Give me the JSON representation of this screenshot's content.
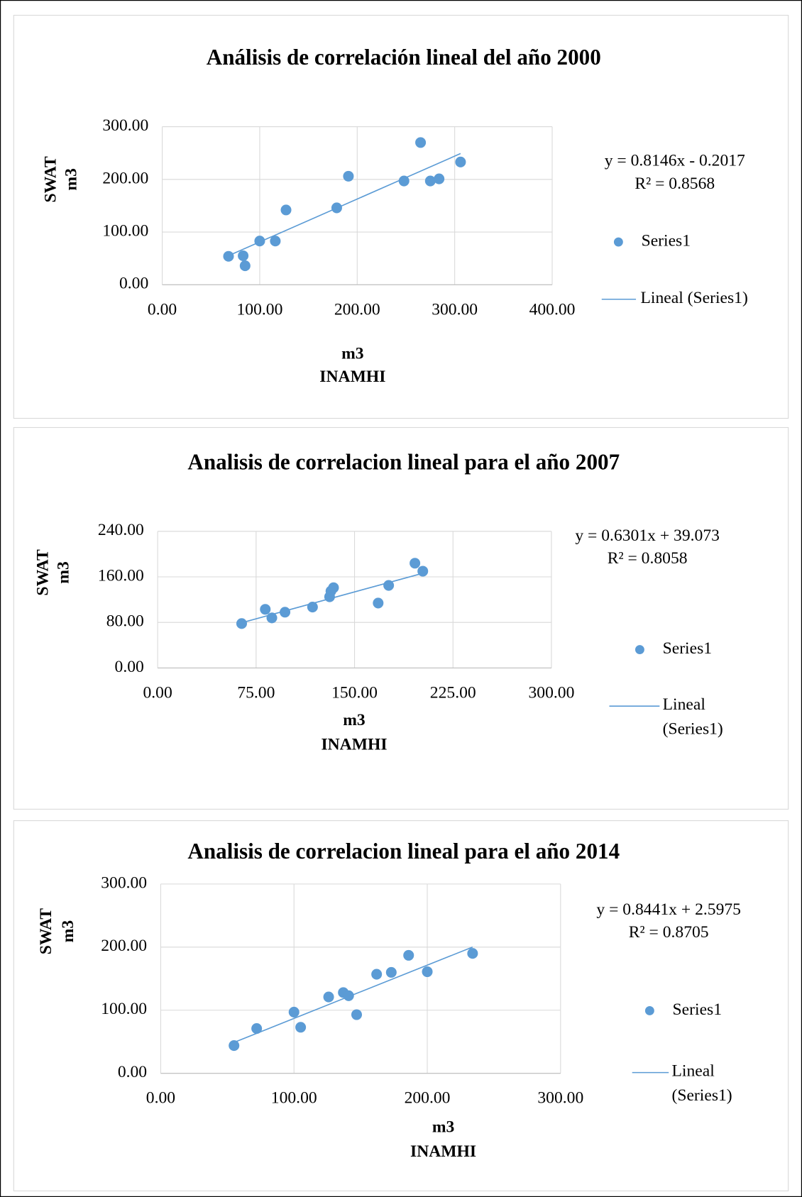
{
  "chart_data": [
    {
      "type": "scatter",
      "title": "Análisis de correlación lineal del año 2000",
      "xlabel": [
        "m3",
        "INAMHI"
      ],
      "ylabel": [
        "SWAT",
        "m3"
      ],
      "xlim": [
        0,
        400
      ],
      "ylim": [
        0,
        300
      ],
      "xticks": [
        {
          "value": 0,
          "label": "0.00"
        },
        {
          "value": 100,
          "label": "100.00"
        },
        {
          "value": 200,
          "label": "200.00"
        },
        {
          "value": 300,
          "label": "300.00"
        },
        {
          "value": 400,
          "label": "400.00"
        }
      ],
      "yticks": [
        {
          "value": 0,
          "label": "0.00"
        },
        {
          "value": 100,
          "label": "100.00"
        },
        {
          "value": 200,
          "label": "200.00"
        },
        {
          "value": 300,
          "label": "300.00"
        }
      ],
      "grid": true,
      "series": [
        {
          "name": "Series1",
          "color": "#5b9bd5",
          "x": [
            68,
            83,
            85,
            100,
            116,
            127,
            179,
            191,
            248,
            265,
            275,
            284,
            306
          ],
          "values": [
            54,
            55,
            36,
            83,
            83,
            142,
            146,
            206,
            197,
            270,
            197,
            201,
            233
          ]
        }
      ],
      "trendline": {
        "name": "Lineal (Series1)",
        "equation": "y = 0.8146x - 0.2017",
        "r_squared": "R² = 0.8568",
        "slope": 0.8146,
        "intercept": -0.2017
      }
    },
    {
      "type": "scatter",
      "title": "Analisis de correlacion lineal para el año 2007",
      "xlabel": [
        "m3",
        "INAMHI"
      ],
      "ylabel": [
        "SWAT",
        "m3"
      ],
      "xlim": [
        0,
        300
      ],
      "ylim": [
        0,
        240
      ],
      "xticks": [
        {
          "value": 0,
          "label": "0.00"
        },
        {
          "value": 75,
          "label": "75.00"
        },
        {
          "value": 150,
          "label": "150.00"
        },
        {
          "value": 225,
          "label": "225.00"
        },
        {
          "value": 300,
          "label": "300.00"
        }
      ],
      "yticks": [
        {
          "value": 0,
          "label": "0.00"
        },
        {
          "value": 80,
          "label": "80.00"
        },
        {
          "value": 160,
          "label": "160.00"
        },
        {
          "value": 240,
          "label": "240.00"
        }
      ],
      "grid": true,
      "series": [
        {
          "name": "Series1",
          "color": "#5b9bd5",
          "x": [
            64,
            82,
            87,
            97,
            118,
            131,
            132,
            134,
            168,
            176,
            196,
            202
          ],
          "values": [
            78,
            103,
            88,
            98,
            107,
            125,
            135,
            141,
            114,
            145,
            184,
            170
          ]
        }
      ],
      "trendline": {
        "name": "Lineal (Series1)",
        "equation": "y = 0.6301x + 39.073",
        "r_squared": "R² = 0.8058",
        "slope": 0.6301,
        "intercept": 39.073
      }
    },
    {
      "type": "scatter",
      "title": "Analisis de correlacion lineal para el año 2014",
      "xlabel": [
        "m3",
        "INAMHI"
      ],
      "ylabel": [
        "SWAT",
        "m3"
      ],
      "xlim": [
        0,
        300
      ],
      "ylim": [
        0,
        300
      ],
      "xticks": [
        {
          "value": 0,
          "label": "0.00"
        },
        {
          "value": 100,
          "label": "100.00"
        },
        {
          "value": 200,
          "label": "200.00"
        },
        {
          "value": 300,
          "label": "300.00"
        }
      ],
      "yticks": [
        {
          "value": 0,
          "label": "0.00"
        },
        {
          "value": 100,
          "label": "100.00"
        },
        {
          "value": 200,
          "label": "200.00"
        },
        {
          "value": 300,
          "label": "300.00"
        }
      ],
      "grid": true,
      "series": [
        {
          "name": "Series1",
          "color": "#5b9bd5",
          "x": [
            55,
            72,
            100,
            105,
            126,
            137,
            141,
            147,
            162,
            173,
            186,
            200,
            234
          ],
          "values": [
            44,
            71,
            97,
            73,
            121,
            128,
            123,
            93,
            157,
            160,
            187,
            161,
            190
          ]
        }
      ],
      "trendline": {
        "name": "Lineal (Series1)",
        "equation": "y = 0.8441x + 2.5975",
        "r_squared": "R² = 0.8705",
        "slope": 0.8441,
        "intercept": 2.5975
      }
    }
  ]
}
